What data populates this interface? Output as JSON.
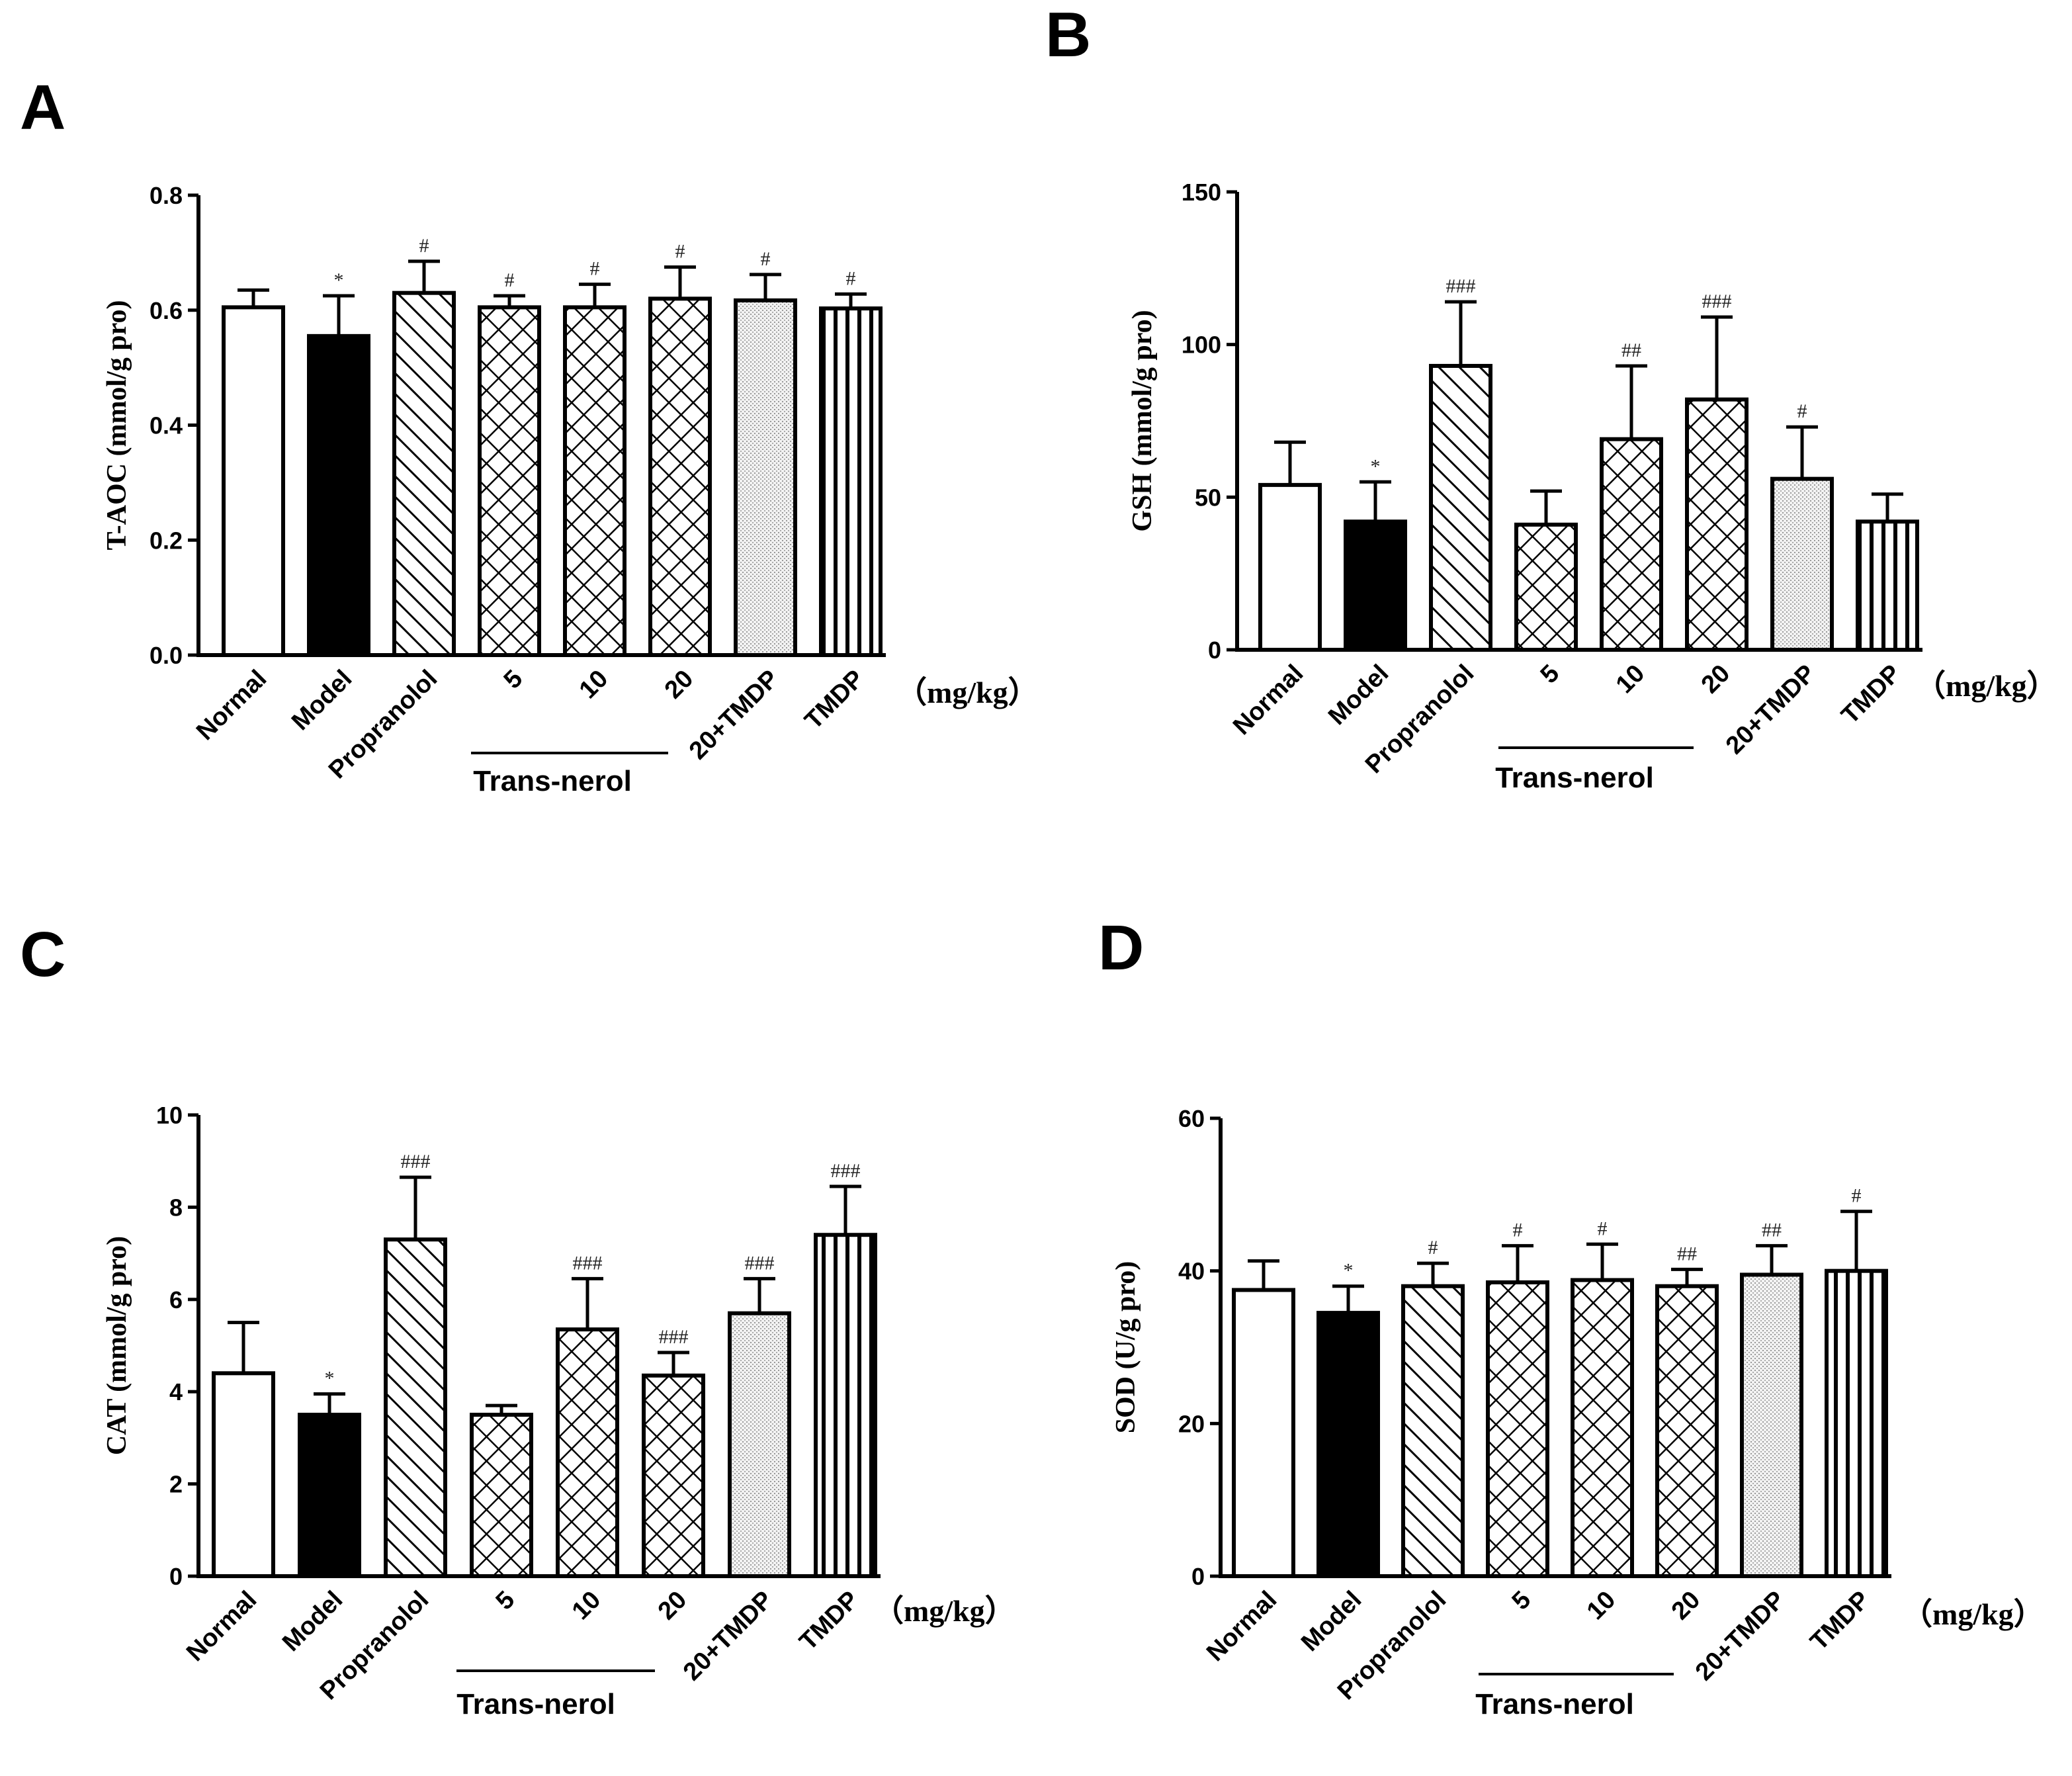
{
  "chart_data": [
    {
      "panel": "A",
      "type": "bar",
      "ylabel": "T-AOC (mmol/g pro)",
      "ylim": [
        0,
        0.8
      ],
      "yticks": [
        "0.0",
        "0.2",
        "0.4",
        "0.6",
        "0.8"
      ],
      "categories": [
        "Normal",
        "Model",
        "Propranolol",
        "5",
        "10",
        "20",
        "20+TMDP",
        "TMDP"
      ],
      "values": [
        0.605,
        0.555,
        0.63,
        0.605,
        0.605,
        0.62,
        0.617,
        0.603
      ],
      "errors": [
        0.03,
        0.07,
        0.055,
        0.02,
        0.04,
        0.055,
        0.045,
        0.025
      ],
      "significance": [
        "",
        "*",
        "#",
        "#",
        "#",
        "#",
        "#",
        "#"
      ],
      "group_label": "Trans-nerol",
      "unit_label": "（mg/kg）"
    },
    {
      "panel": "B",
      "type": "bar",
      "ylabel": "GSH (mmol/g pro)",
      "ylim": [
        0,
        150
      ],
      "yticks": [
        "0",
        "50",
        "100",
        "150"
      ],
      "categories": [
        "Normal",
        "Model",
        "Propranolol",
        "5",
        "10",
        "20",
        "20+TMDP",
        "TMDP"
      ],
      "values": [
        54,
        42,
        93,
        41,
        69,
        82,
        56,
        42
      ],
      "errors": [
        14,
        13,
        21,
        11,
        24,
        27,
        17,
        9
      ],
      "significance": [
        "",
        "*",
        "###",
        "",
        "##",
        "###",
        "#",
        ""
      ],
      "group_label": "Trans-nerol",
      "unit_label": "（mg/kg）"
    },
    {
      "panel": "C",
      "type": "bar",
      "ylabel": "CAT (mmol/g pro)",
      "ylim": [
        0,
        10
      ],
      "yticks": [
        "0",
        "2",
        "4",
        "6",
        "8",
        "10"
      ],
      "categories": [
        "Normal",
        "Model",
        "Propranolol",
        "5",
        "10",
        "20",
        "20+TMDP",
        "TMDP"
      ],
      "values": [
        4.4,
        3.5,
        7.3,
        3.5,
        5.35,
        4.35,
        5.7,
        7.4
      ],
      "errors": [
        1.1,
        0.45,
        1.35,
        0.2,
        1.1,
        0.5,
        0.75,
        1.05
      ],
      "significance": [
        "",
        "*",
        "###",
        "",
        "###",
        "###",
        "###",
        "###"
      ],
      "group_label": "Trans-nerol",
      "unit_label": "（mg/kg）"
    },
    {
      "panel": "D",
      "type": "bar",
      "ylabel": "SOD (U/g pro)",
      "ylim": [
        0,
        60
      ],
      "yticks": [
        "0",
        "20",
        "40",
        "60"
      ],
      "categories": [
        "Normal",
        "Model",
        "Propranolol",
        "5",
        "10",
        "20",
        "20+TMDP",
        "TMDP"
      ],
      "values": [
        37.5,
        34.5,
        38,
        38.5,
        38.8,
        38,
        39.5,
        40
      ],
      "errors": [
        3.8,
        3.5,
        3,
        4.8,
        4.7,
        2.2,
        3.8,
        7.8
      ],
      "significance": [
        "",
        "*",
        "#",
        "#",
        "#",
        "##",
        "##",
        "#"
      ],
      "group_label": "Trans-nerol",
      "unit_label": "（mg/kg）"
    }
  ],
  "styles": {
    "fills": [
      "white",
      "black",
      "diagonal",
      "crosshatch",
      "crosshatch",
      "crosshatch",
      "dotted",
      "vertical"
    ]
  }
}
